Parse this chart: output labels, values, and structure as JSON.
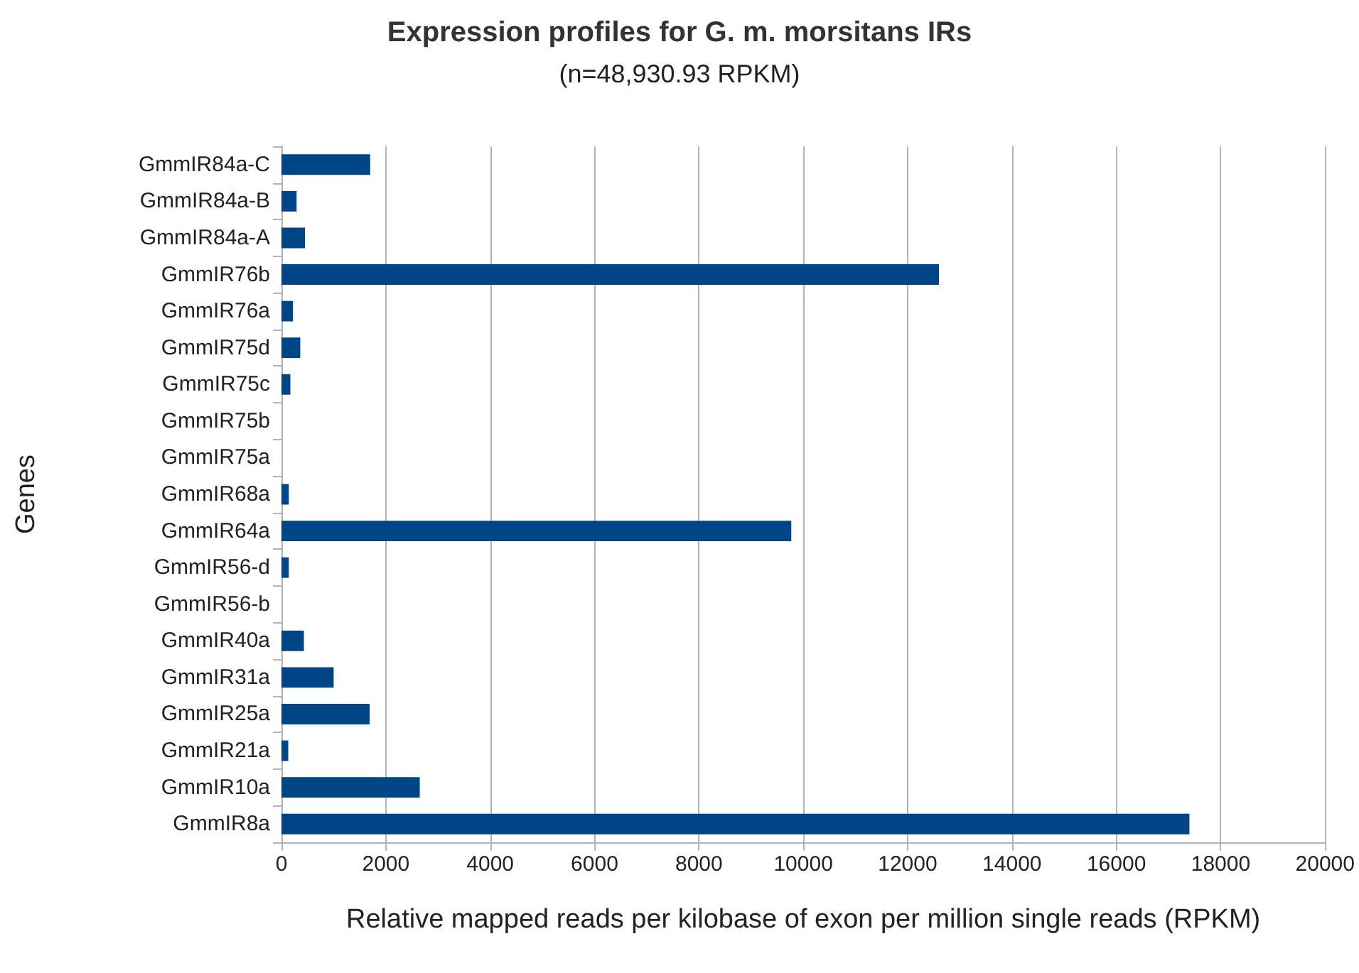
{
  "chart_data": {
    "type": "bar",
    "orientation": "horizontal",
    "title": "Expression profiles for G. m. morsitans IRs",
    "subtitle": "(n=48,930.93 RPKM)",
    "xlabel": "Relative mapped reads per kilobase of exon per million single reads (RPKM)",
    "ylabel": "Genes",
    "categories": [
      "GmmIR84a-C",
      "GmmIR84a-B",
      "GmmIR84a-A",
      "GmmIR76b",
      "GmmIR76a",
      "GmmIR75d",
      "GmmIR75c",
      "GmmIR75b",
      "GmmIR75a",
      "GmmIR68a",
      "GmmIR64a",
      "GmmIR56-d",
      "GmmIR56-b",
      "GmmIR40a",
      "GmmIR31a",
      "GmmIR25a",
      "GmmIR21a",
      "GmmIR10a",
      "GmmIR8a"
    ],
    "values": [
      1700,
      290,
      450,
      12600,
      220,
      360,
      170,
      0,
      0,
      140,
      9770,
      140,
      0,
      430,
      1000,
      1690,
      130,
      2650,
      17400
    ],
    "color": "#004586",
    "xlim": [
      0,
      20000
    ],
    "xticks": [
      0,
      2000,
      4000,
      6000,
      8000,
      10000,
      12000,
      14000,
      16000,
      18000,
      20000
    ],
    "grid": "x"
  }
}
